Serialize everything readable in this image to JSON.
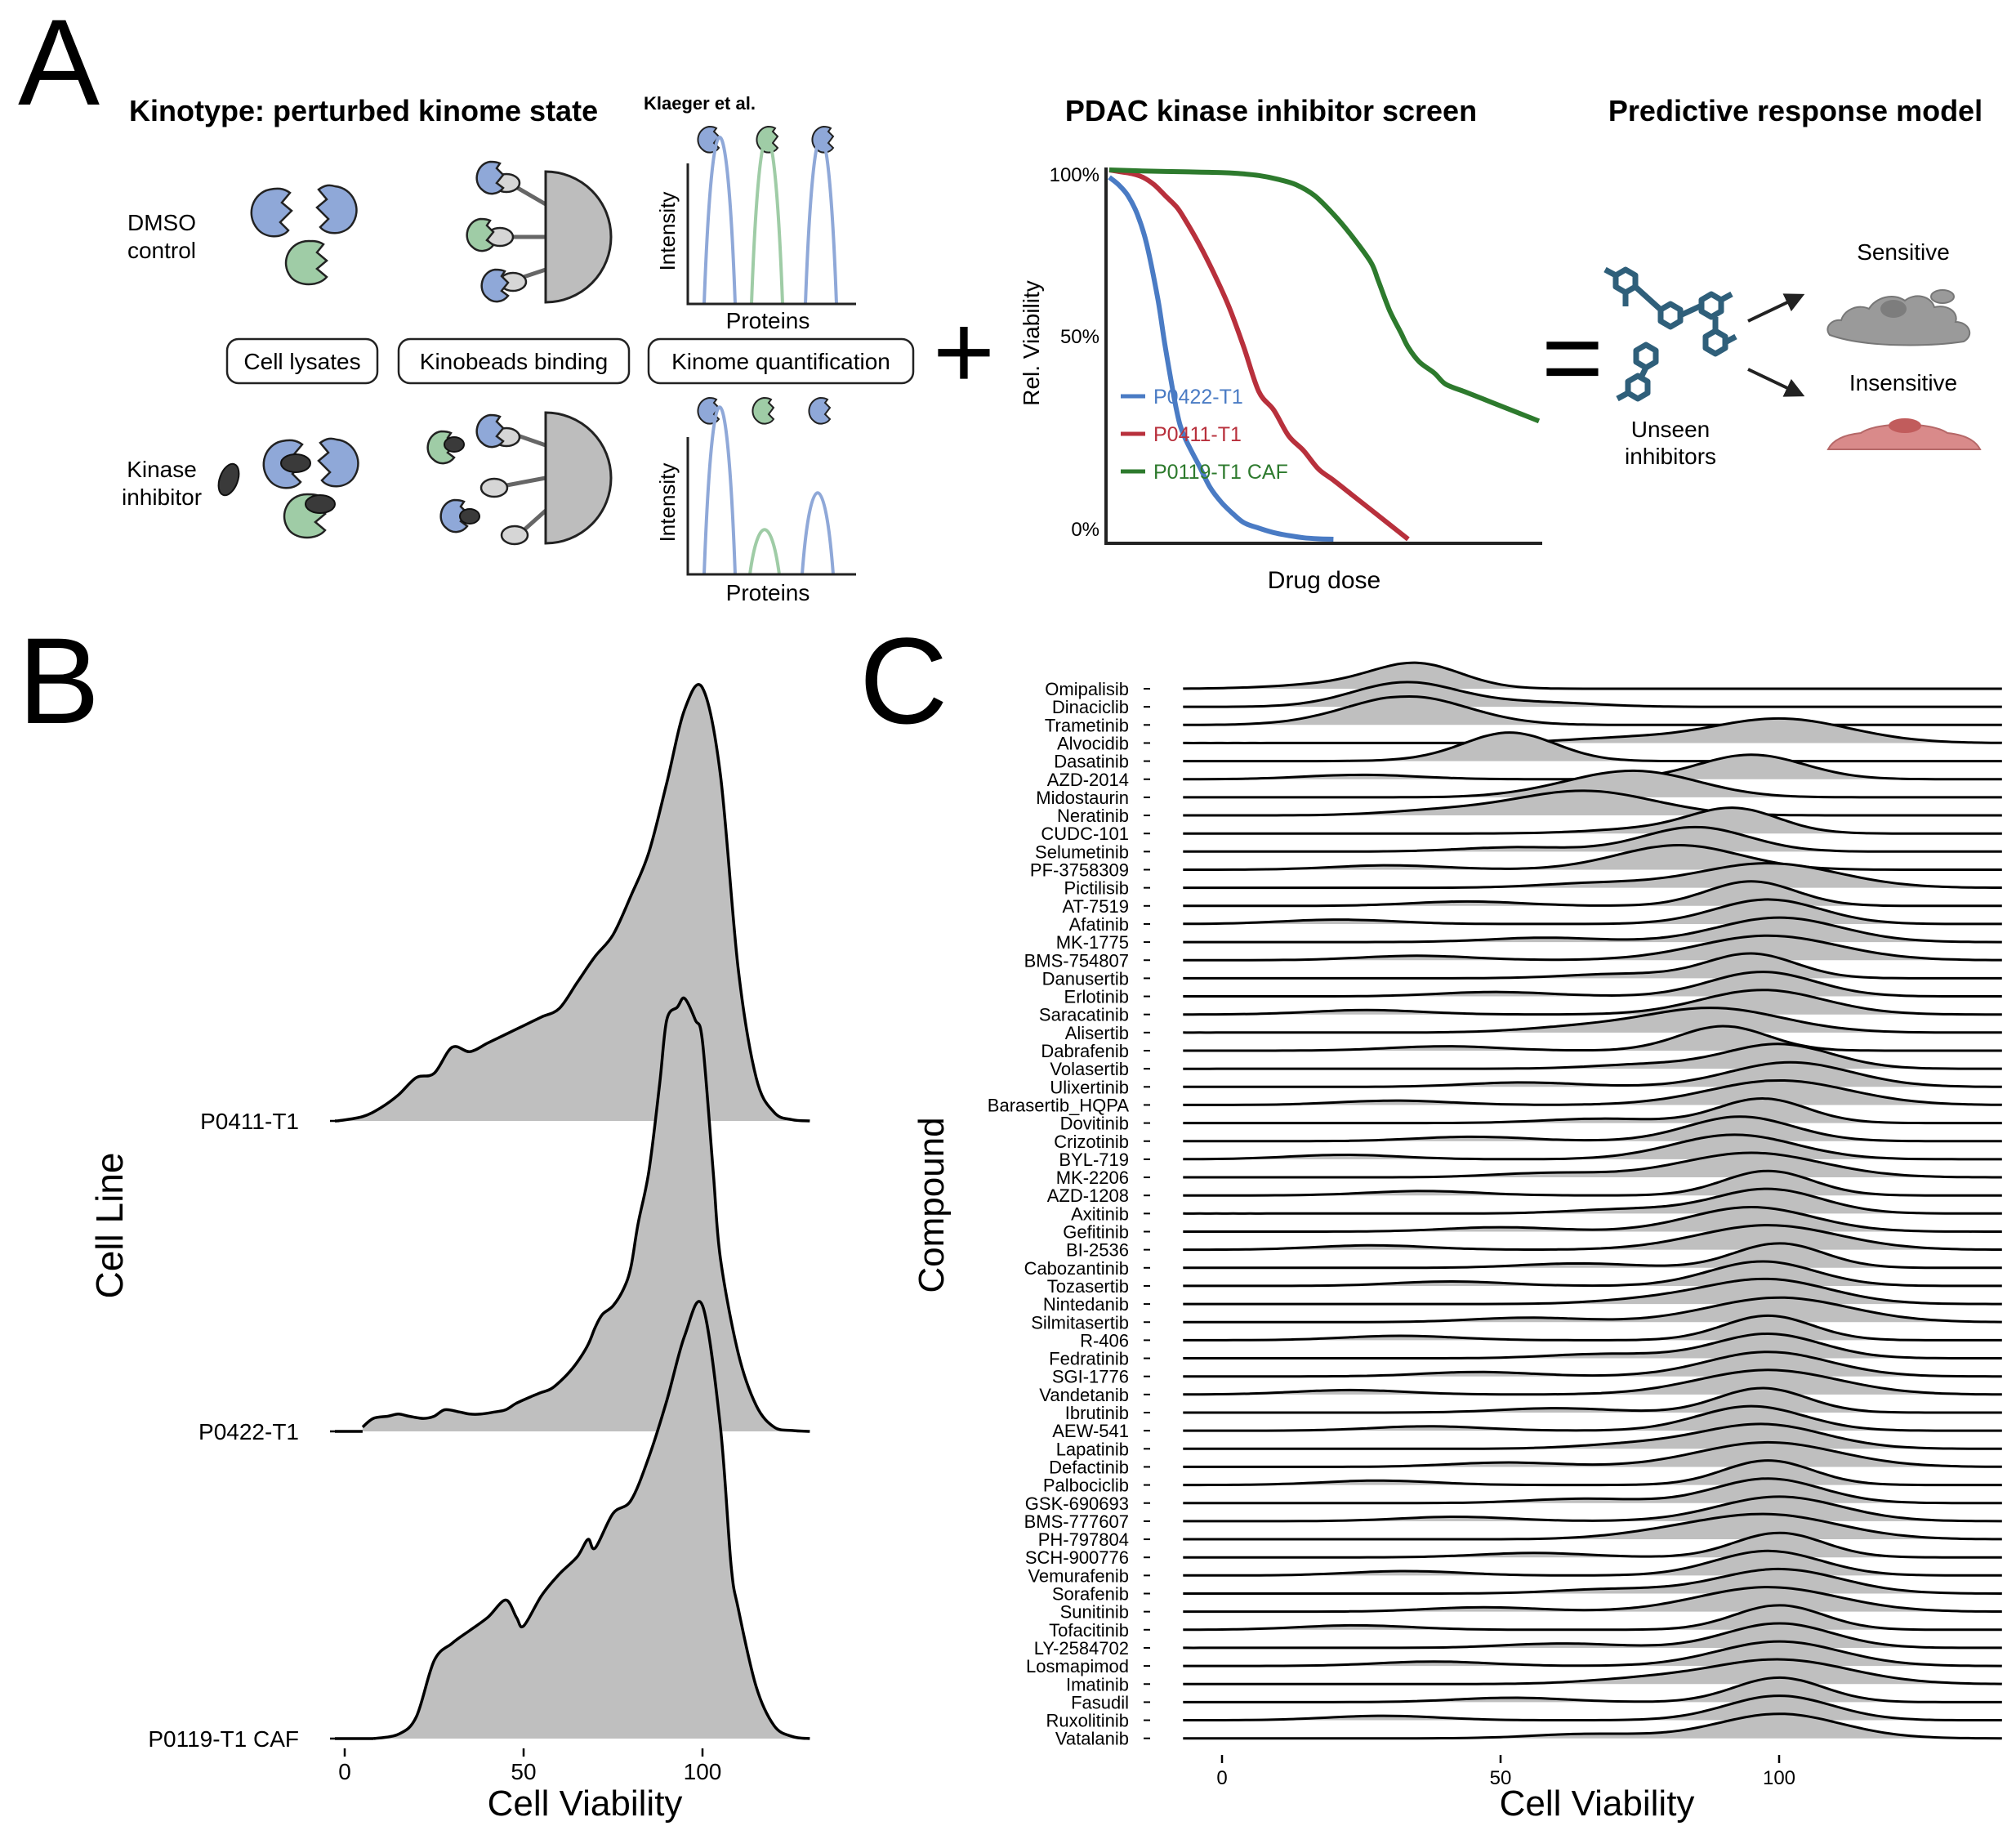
{
  "panelA": {
    "letter": "A",
    "kinotype": {
      "title": "Kinotype: perturbed kinome state",
      "superscript": "Klaeger et al.",
      "row1_label": [
        "DMSO",
        "control"
      ],
      "row2_label": [
        "Kinase",
        "inhibitor"
      ],
      "steps": [
        "Cell lysates",
        "Kinobeads binding",
        "Kinome quantification"
      ],
      "ms_ylabel": "Intensity",
      "ms_xlabel": "Proteins",
      "colors": {
        "blue": "#8fa8d8",
        "green": "#9fcca6",
        "inhibitor": "#3a3a3a",
        "bead": "#bdbdbd"
      },
      "icons": [
        "kinase-protein-icon",
        "kinase-inhibitor-icon",
        "kinobead-icon",
        "ms-spectrum-icon"
      ]
    },
    "plus_symbol": "+",
    "equals_symbol": "=",
    "screen": {
      "title": "PDAC kinase inhibitor screen",
      "ylabel": "Rel. Viability",
      "xlabel": "Drug dose",
      "yticks": [
        "100%",
        "50%",
        "0%"
      ]
    },
    "model": {
      "title": "Predictive response model",
      "unseen": [
        "Unseen",
        "inhibitors"
      ],
      "sensitive": "Sensitive",
      "insensitive": "Insensitive",
      "colors": {
        "molecule": "#2f5f7a",
        "sensitive_cell": "#9a9a9a",
        "insensitive_cell": "#d98a8a"
      }
    }
  },
  "panelB": {
    "letter": "B"
  },
  "panelC": {
    "letter": "C"
  },
  "chart_data": [
    {
      "type": "line",
      "title": "PDAC kinase inhibitor screen",
      "xlabel": "Drug dose",
      "ylabel": "Rel. Viability",
      "ylim": [
        0,
        100
      ],
      "yticks": [
        "0%",
        "50%",
        "100%"
      ],
      "legend_position": "bottom-left",
      "series": [
        {
          "name": "P0422-T1",
          "color": "#4a7bc4",
          "x": [
            0,
            0.25,
            0.5,
            0.75,
            1,
            1.3,
            1.5,
            1.8,
            2,
            2.4,
            2.7,
            3,
            3.3,
            3.6,
            4,
            4.4,
            4.8,
            5.2,
            5.6,
            6
          ],
          "values": [
            98,
            96,
            93,
            88,
            80,
            65,
            52,
            35,
            28,
            20,
            14,
            10,
            7,
            4.5,
            3,
            1.8,
            1,
            0.4,
            0.1,
            0
          ]
        },
        {
          "name": "P0411-T1",
          "color": "#b8303c",
          "x": [
            0,
            0.3,
            0.6,
            0.9,
            1.2,
            1.5,
            1.8,
            2,
            2.4,
            2.8,
            3.2,
            3.6,
            4,
            4.4,
            4.8,
            5.2,
            5.6,
            6,
            6.5,
            7,
            7.5,
            8
          ],
          "values": [
            100,
            99.5,
            99,
            98,
            96,
            93,
            90,
            87,
            80,
            72,
            63,
            52,
            40,
            35,
            28,
            24,
            19,
            16,
            12,
            8,
            4,
            0
          ]
        },
        {
          "name": "P0119-T1 CAF",
          "color": "#2d7a2d",
          "x": [
            0,
            1,
            2,
            3,
            3.5,
            4,
            4.5,
            5,
            5.5,
            6,
            6.5,
            7,
            7.2,
            7.5,
            7.8,
            8,
            8.3,
            8.7,
            9,
            9.5,
            10,
            10.5,
            11,
            11.5
          ],
          "values": [
            100,
            99.7,
            99.5,
            99.3,
            99,
            98.5,
            97.5,
            96,
            93,
            88,
            82,
            75,
            70,
            62,
            56,
            52,
            48,
            45,
            42,
            40,
            38,
            36,
            34,
            32
          ]
        }
      ]
    },
    {
      "type": "area",
      "subtype": "ridgeline",
      "title": "",
      "xlabel": "Cell Viability",
      "ylabel": "Cell Line",
      "xticks": [
        0,
        50,
        100
      ],
      "xlim": [
        -5,
        135
      ],
      "fill": "#bfbfbf",
      "series": [
        {
          "name": "P0411-T1",
          "x": [
            -2,
            5,
            10,
            15,
            20,
            25,
            30,
            35,
            40,
            45,
            50,
            55,
            60,
            65,
            70,
            75,
            80,
            85,
            90,
            95,
            100,
            105,
            110,
            115,
            120,
            125,
            130
          ],
          "values": [
            0,
            0.01,
            0.03,
            0.06,
            0.1,
            0.11,
            0.17,
            0.16,
            0.18,
            0.2,
            0.22,
            0.24,
            0.26,
            0.32,
            0.38,
            0.43,
            0.52,
            0.62,
            0.78,
            0.95,
            1.0,
            0.8,
            0.35,
            0.1,
            0.02,
            0.003,
            0
          ]
        },
        {
          "name": "P0422-T1",
          "x": [
            5,
            8,
            12,
            15,
            18,
            22,
            25,
            28,
            32,
            35,
            38,
            42,
            45,
            48,
            52,
            55,
            58,
            62,
            65,
            68,
            70,
            72,
            75,
            78,
            80,
            82,
            85,
            88,
            90,
            93,
            95,
            98,
            100,
            103,
            105,
            110,
            115,
            120,
            125,
            130
          ],
          "values": [
            0.01,
            0.03,
            0.035,
            0.04,
            0.035,
            0.03,
            0.035,
            0.05,
            0.045,
            0.04,
            0.04,
            0.045,
            0.05,
            0.065,
            0.08,
            0.09,
            0.1,
            0.13,
            0.16,
            0.2,
            0.24,
            0.27,
            0.29,
            0.33,
            0.38,
            0.48,
            0.6,
            0.8,
            0.95,
            0.98,
            1.0,
            0.95,
            0.9,
            0.6,
            0.4,
            0.18,
            0.06,
            0.01,
            0.002,
            0
          ]
        },
        {
          "name": "P0119-T1 CAF",
          "x": [
            8,
            15,
            20,
            25,
            30,
            35,
            40,
            45,
            48,
            50,
            55,
            60,
            65,
            68,
            70,
            75,
            80,
            85,
            90,
            95,
            100,
            105,
            108,
            110,
            115,
            120,
            125,
            130
          ],
          "values": [
            0,
            0.01,
            0.05,
            0.18,
            0.22,
            0.25,
            0.28,
            0.32,
            0.28,
            0.26,
            0.33,
            0.38,
            0.42,
            0.46,
            0.44,
            0.52,
            0.55,
            0.65,
            0.78,
            0.93,
            1.0,
            0.72,
            0.4,
            0.3,
            0.12,
            0.03,
            0.005,
            0
          ]
        }
      ]
    },
    {
      "type": "area",
      "subtype": "ridgeline",
      "title": "",
      "xlabel": "Cell Viability",
      "ylabel": "Compound",
      "xticks": [
        0,
        50,
        100
      ],
      "xlim": [
        -7,
        140
      ],
      "fill": "#bfbfbf",
      "categories": [
        "Omipalisib",
        "Dinaciclib",
        "Trametinib",
        "Alvocidib",
        "Dasatinib",
        "AZD-2014",
        "Midostaurin",
        "Neratinib",
        "CUDC-101",
        "Selumetinib",
        "PF-3758309",
        "Pictilisib",
        "AT-7519",
        "Afatinib",
        "MK-1775",
        "BMS-754807",
        "Danusertib",
        "Erlotinib",
        "Saracatinib",
        "Alisertib",
        "Dabrafenib",
        "Volasertib",
        "Ulixertinib",
        "Barasertib_HQPA",
        "Dovitinib",
        "Crizotinib",
        "BYL-719",
        "MK-2206",
        "AZD-1208",
        "Axitinib",
        "Gefitinib",
        "BI-2536",
        "Cabozantinib",
        "Tozasertib",
        "Nintedanib",
        "Silmitasertib",
        "R-406",
        "Fedratinib",
        "SGI-1776",
        "Vandetanib",
        "Ibrutinib",
        "AEW-541",
        "Lapatinib",
        "Defactinib",
        "Palbociclib",
        "GSK-690693",
        "BMS-777607",
        "PH-797804",
        "SCH-900776",
        "Vemurafenib",
        "Sorafenib",
        "Sunitinib",
        "Tofacitinib",
        "LY-2584702",
        "Losmapimod",
        "Imatinib",
        "Fasudil",
        "Ruxolitinib",
        "Vatalanib"
      ],
      "peak_x": [
        35,
        33,
        33,
        100,
        52,
        95,
        75,
        65,
        92,
        85,
        82,
        98,
        95,
        98,
        100,
        98,
        95,
        97,
        97,
        88,
        90,
        100,
        102,
        100,
        97,
        93,
        92,
        95,
        98,
        98,
        95,
        98,
        100,
        97,
        98,
        100,
        98,
        98,
        98,
        98,
        97,
        95,
        97,
        98,
        98,
        98,
        100,
        98,
        100,
        98,
        100,
        98,
        100,
        100,
        100,
        100,
        100,
        100,
        100
      ]
    }
  ]
}
